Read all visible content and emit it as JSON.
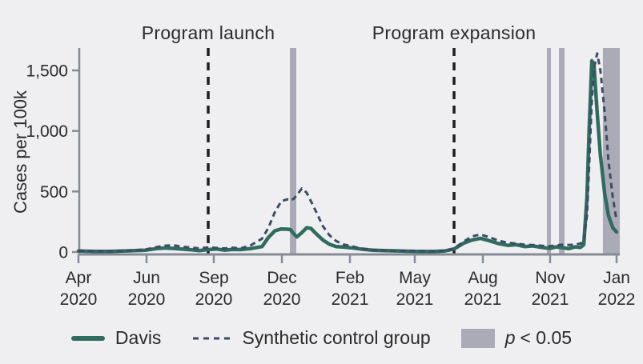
{
  "chart_data": {
    "type": "line",
    "title": "",
    "xlabel": "",
    "ylabel": "Cases per 100k",
    "ylim": [
      0,
      1690
    ],
    "grid": false,
    "legend_position": "bottom",
    "colors": {
      "background": "#EFEFF1",
      "davis": "#2F6B5E",
      "synthetic": "#3E4A66",
      "band": "#ABABB8",
      "axis": "#868C96",
      "event_line": "#1E1E1E",
      "text": "#2B2B2B"
    },
    "y_ticks": [
      {
        "value": 0,
        "label": "0"
      },
      {
        "value": 500,
        "label": "500"
      },
      {
        "value": 1000,
        "label": "1,000"
      },
      {
        "value": 1500,
        "label": "1,500"
      }
    ],
    "x_ticks": [
      {
        "month": "Apr",
        "year": "2020",
        "t": 0.0
      },
      {
        "month": "Jun",
        "year": "2020",
        "t": 0.1265
      },
      {
        "month": "Sep",
        "year": "2020",
        "t": 0.2515
      },
      {
        "month": "Dec",
        "year": "2020",
        "t": 0.378
      },
      {
        "month": "Feb",
        "year": "2021",
        "t": 0.5045
      },
      {
        "month": "May",
        "year": "2021",
        "t": 0.625
      },
      {
        "month": "Aug",
        "year": "2021",
        "t": 0.7515
      },
      {
        "month": "Nov",
        "year": "2021",
        "t": 0.8765
      },
      {
        "month": "Jan",
        "year": "2022",
        "t": 1.0
      }
    ],
    "events": [
      {
        "label": "Program launch",
        "t": 0.2411
      },
      {
        "label": "Program expansion",
        "t": 0.698
      }
    ],
    "significance_bands": [
      {
        "t0": 0.3929,
        "t1": 0.4048
      },
      {
        "t0": 0.8705,
        "t1": 0.878
      },
      {
        "t0": 0.8929,
        "t1": 0.9033
      },
      {
        "t0": 0.9746,
        "t1": 1.006
      }
    ],
    "series_names": [
      "Davis",
      "Synthetic control group"
    ],
    "points_format": [
      "t",
      "Davis",
      "Synthetic control group"
    ],
    "points": [
      [
        0.0,
        8,
        12
      ],
      [
        0.03,
        5,
        7
      ],
      [
        0.06,
        5,
        6
      ],
      [
        0.09,
        9,
        10
      ],
      [
        0.125,
        15,
        22
      ],
      [
        0.145,
        28,
        40
      ],
      [
        0.16,
        33,
        52
      ],
      [
        0.175,
        30,
        56
      ],
      [
        0.19,
        25,
        46
      ],
      [
        0.21,
        18,
        36
      ],
      [
        0.225,
        12,
        30
      ],
      [
        0.241,
        20,
        38
      ],
      [
        0.256,
        25,
        34
      ],
      [
        0.271,
        15,
        30
      ],
      [
        0.286,
        22,
        36
      ],
      [
        0.301,
        20,
        30
      ],
      [
        0.32,
        28,
        55
      ],
      [
        0.341,
        45,
        110
      ],
      [
        0.353,
        120,
        200
      ],
      [
        0.365,
        175,
        330
      ],
      [
        0.377,
        190,
        420
      ],
      [
        0.388,
        188,
        435
      ],
      [
        0.394,
        185,
        425
      ],
      [
        0.4,
        150,
        440
      ],
      [
        0.406,
        125,
        470
      ],
      [
        0.415,
        160,
        525
      ],
      [
        0.424,
        200,
        490
      ],
      [
        0.432,
        195,
        420
      ],
      [
        0.442,
        150,
        330
      ],
      [
        0.454,
        100,
        215
      ],
      [
        0.466,
        65,
        140
      ],
      [
        0.479,
        45,
        90
      ],
      [
        0.494,
        40,
        60
      ],
      [
        0.506,
        35,
        50
      ],
      [
        0.524,
        25,
        30
      ],
      [
        0.546,
        15,
        18
      ],
      [
        0.568,
        12,
        14
      ],
      [
        0.598,
        8,
        10
      ],
      [
        0.628,
        5,
        8
      ],
      [
        0.658,
        4,
        6
      ],
      [
        0.68,
        8,
        10
      ],
      [
        0.698,
        25,
        30
      ],
      [
        0.717,
        75,
        90
      ],
      [
        0.732,
        100,
        130
      ],
      [
        0.747,
        113,
        145
      ],
      [
        0.762,
        95,
        125
      ],
      [
        0.78,
        70,
        95
      ],
      [
        0.798,
        55,
        75
      ],
      [
        0.814,
        60,
        70
      ],
      [
        0.829,
        45,
        60
      ],
      [
        0.844,
        50,
        58
      ],
      [
        0.86,
        38,
        52
      ],
      [
        0.876,
        30,
        48
      ],
      [
        0.888,
        42,
        55
      ],
      [
        0.899,
        35,
        60
      ],
      [
        0.911,
        28,
        58
      ],
      [
        0.923,
        42,
        62
      ],
      [
        0.933,
        38,
        70
      ],
      [
        0.939,
        60,
        90
      ],
      [
        0.945,
        450,
        300
      ],
      [
        0.949,
        1000,
        700
      ],
      [
        0.954,
        1580,
        1250
      ],
      [
        0.958,
        1540,
        1520
      ],
      [
        0.964,
        1150,
        1640
      ],
      [
        0.97,
        800,
        1500
      ],
      [
        0.978,
        480,
        1150
      ],
      [
        0.985,
        300,
        750
      ],
      [
        0.993,
        200,
        450
      ],
      [
        1.0,
        165,
        260
      ]
    ]
  },
  "legend": {
    "davis_label": "Davis",
    "synthetic_label": "Synthetic control group",
    "p_label": "p < 0.05",
    "p_italic": "p",
    "p_rest": "< 0.05"
  }
}
